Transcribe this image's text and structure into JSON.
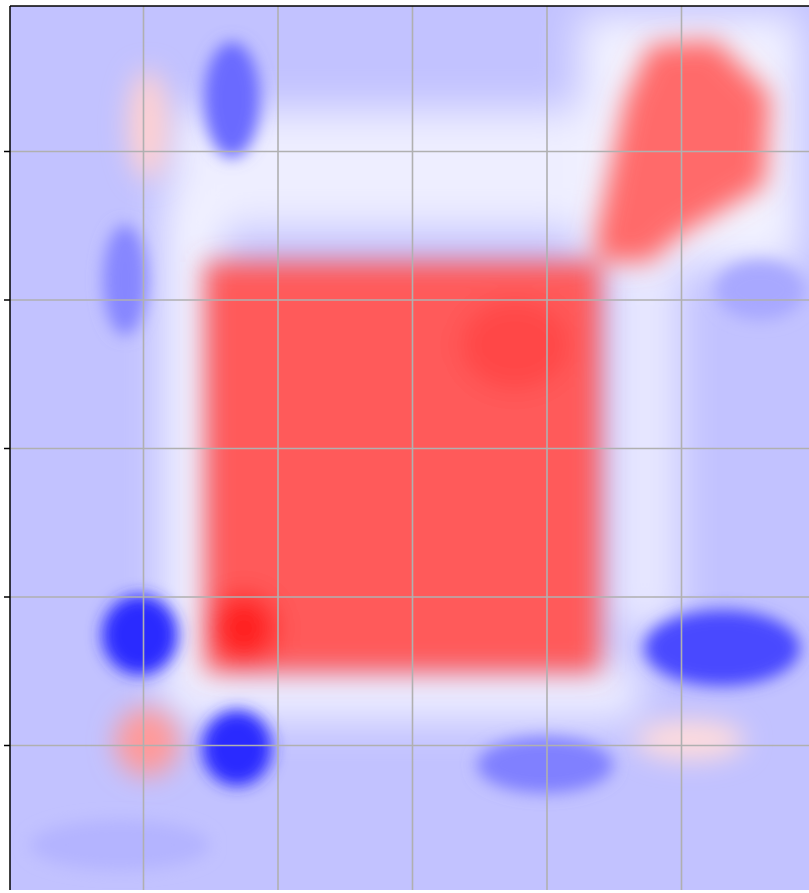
{
  "chart_data": {
    "type": "heatmap",
    "title": "",
    "xlabel": "",
    "ylabel": "",
    "grid": true,
    "legend": "none",
    "colormap": "bwr",
    "colors": {
      "negative": "#0000ff",
      "zero": "#ffffff",
      "positive": "#ff0000",
      "grid": "#b0b0b0",
      "axis": "#000000"
    },
    "vlim": [
      -1,
      1
    ],
    "x_ticks": [
      1,
      2,
      3,
      4,
      5
    ],
    "y_ticks": [
      1,
      2,
      3,
      4,
      5
    ],
    "y_tick_labels": [],
    "x_tick_labels": [],
    "xlim": [
      0,
      6
    ],
    "ylim": [
      0,
      6
    ],
    "features": [
      {
        "name": "center-square",
        "value": 0.75
      },
      {
        "name": "top-right-lobe",
        "value": 0.6
      },
      {
        "name": "bottom-left-square",
        "value": 0.95
      },
      {
        "name": "top-left-blue",
        "value": -0.7
      },
      {
        "name": "left-blue-upper",
        "value": -0.5
      },
      {
        "name": "left-blue-lower",
        "value": -0.9
      },
      {
        "name": "bottom-blue-1",
        "value": -0.9
      },
      {
        "name": "bottom-blue-2",
        "value": -0.6
      },
      {
        "name": "right-blue",
        "value": -0.75
      },
      {
        "name": "top-left-red",
        "value": 0.35
      },
      {
        "name": "bottom-left-red",
        "value": 0.45
      },
      {
        "name": "bottom-right-red",
        "value": 0.25
      }
    ]
  }
}
